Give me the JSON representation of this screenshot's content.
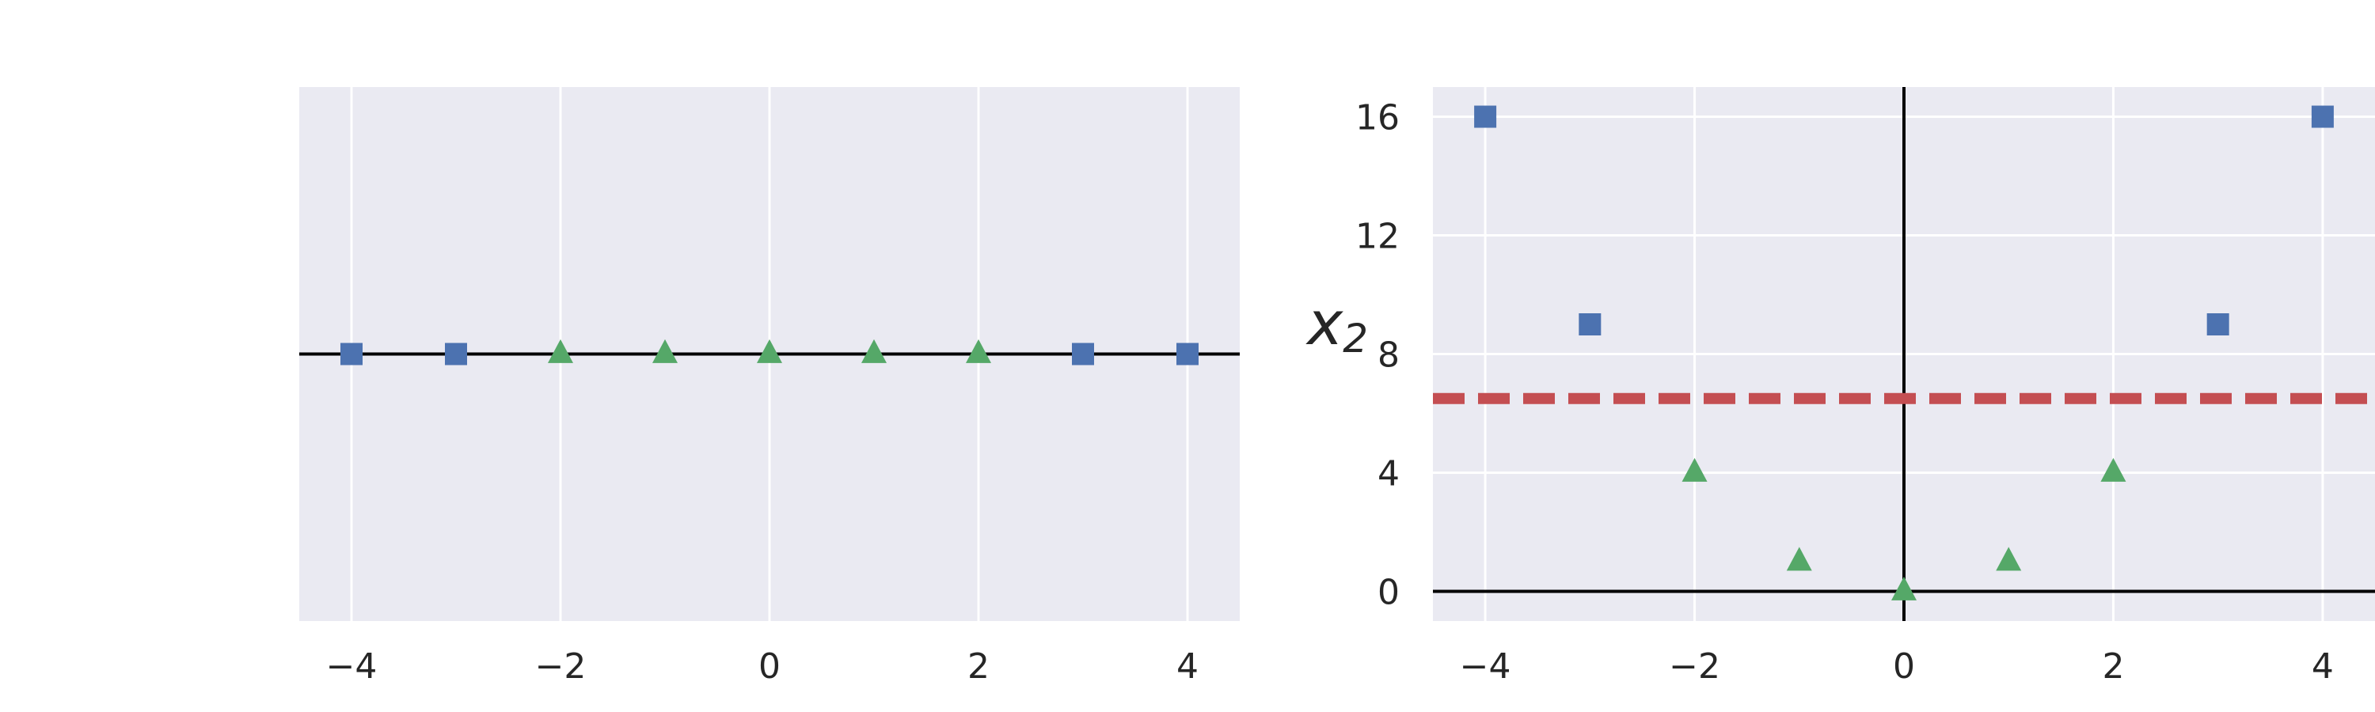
{
  "colors": {
    "background": "#ffffff",
    "plot_bg": "#eaeaf2",
    "grid": "#ffffff",
    "axis_line": "#000000",
    "class_a": "#4c72b0",
    "class_b": "#55a868",
    "boundary": "#c44e52"
  },
  "chart_data": [
    {
      "type": "scatter",
      "title": "",
      "xlabel": "",
      "ylabel": "",
      "xlim": [
        -4.5,
        4.5
      ],
      "ylim": [
        -1,
        1
      ],
      "grid": true,
      "xticks": [
        -4,
        -2,
        0,
        2,
        4
      ],
      "xtick_labels": [
        "−4",
        "−2",
        "0",
        "2",
        "4"
      ],
      "yticks": [],
      "hlines": [
        0
      ],
      "series": [
        {
          "marker": "square",
          "color": "#4c72b0",
          "points": [
            [
              -4,
              0
            ],
            [
              -3,
              0
            ],
            [
              3,
              0
            ],
            [
              4,
              0
            ]
          ]
        },
        {
          "marker": "triangle",
          "color": "#55a868",
          "points": [
            [
              -2,
              0
            ],
            [
              -1,
              0
            ],
            [
              0,
              0
            ],
            [
              1,
              0
            ],
            [
              2,
              0
            ]
          ]
        }
      ]
    },
    {
      "type": "scatter",
      "title": "",
      "xlabel": "",
      "ylabel": "x2",
      "ylabel_main": "x",
      "ylabel_sub": "2",
      "xlim": [
        -4.5,
        4.5
      ],
      "ylim": [
        -1,
        17
      ],
      "grid": true,
      "xticks": [
        -4,
        -2,
        0,
        2,
        4
      ],
      "xtick_labels": [
        "−4",
        "−2",
        "0",
        "2",
        "4"
      ],
      "yticks": [
        0,
        4,
        8,
        12,
        16
      ],
      "ytick_labels": [
        "0",
        "4",
        "8",
        "12",
        "16"
      ],
      "hlines": [
        0
      ],
      "vlines": [
        0
      ],
      "decision_boundary": {
        "y": 6.5,
        "style": "dashed",
        "color": "#c44e52"
      },
      "series": [
        {
          "marker": "square",
          "color": "#4c72b0",
          "points": [
            [
              -4,
              16
            ],
            [
              -3,
              9
            ],
            [
              3,
              9
            ],
            [
              4,
              16
            ]
          ]
        },
        {
          "marker": "triangle",
          "color": "#55a868",
          "points": [
            [
              -2,
              4
            ],
            [
              -1,
              1
            ],
            [
              0,
              0
            ],
            [
              1,
              1
            ],
            [
              2,
              4
            ]
          ]
        }
      ]
    }
  ]
}
